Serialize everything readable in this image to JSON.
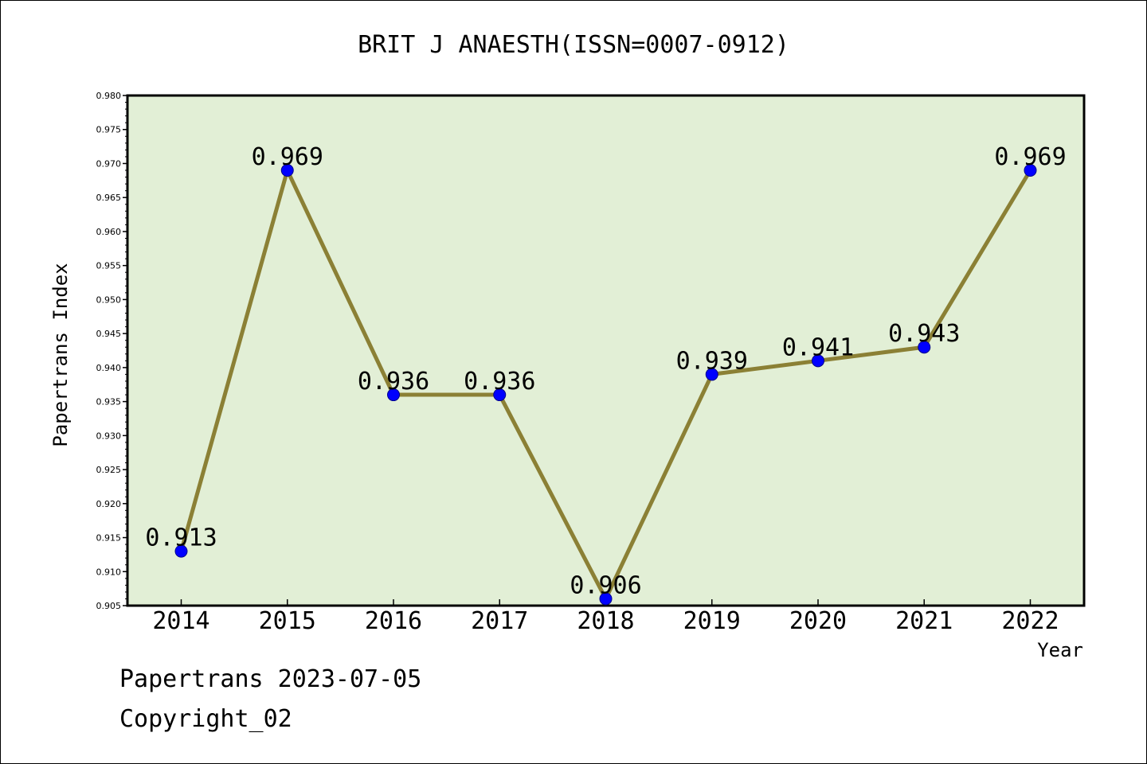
{
  "chart_data": {
    "type": "line",
    "title": "BRIT J ANAESTH(ISSN=0007-0912)",
    "xlabel": "Year",
    "ylabel": "Papertrans Index",
    "categories": [
      "2014",
      "2015",
      "2016",
      "2017",
      "2018",
      "2019",
      "2020",
      "2021",
      "2022"
    ],
    "values": [
      0.913,
      0.969,
      0.936,
      0.936,
      0.906,
      0.939,
      0.941,
      0.943,
      0.969
    ],
    "data_labels": [
      "0.913",
      "0.969",
      "0.936",
      "0.936",
      "0.906",
      "0.939",
      "0.941",
      "0.943",
      "0.969"
    ],
    "ylim": [
      0.905,
      0.98
    ],
    "yticks": [
      "0.905",
      "0.910",
      "0.915",
      "0.920",
      "0.925",
      "0.930",
      "0.935",
      "0.940",
      "0.945",
      "0.950",
      "0.955",
      "0.960",
      "0.965",
      "0.970",
      "0.975",
      "0.980"
    ],
    "grid": false,
    "colors": {
      "plot_background": "#e2efd6",
      "line": "#8b8035",
      "marker": "#0000ff"
    }
  },
  "footer": {
    "line1": "Papertrans 2023-07-05",
    "line2": "Copyright_02"
  }
}
